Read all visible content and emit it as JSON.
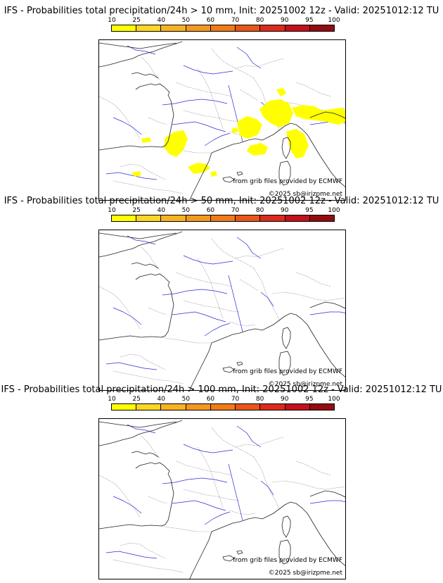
{
  "legend": {
    "labels": [
      "10",
      "25",
      "40",
      "50",
      "60",
      "70",
      "80",
      "90",
      "95",
      "100"
    ],
    "colors": [
      "#ffff00",
      "#fcd626",
      "#f8b323",
      "#f39820",
      "#f07b18",
      "#e9561a",
      "#dc2b1c",
      "#c3101a",
      "#940c12",
      "#5c0a0c"
    ]
  },
  "panels": [
    {
      "title": "IFS - Probabilities total precipitation/24h > 10 mm, Init: 20251002 12z - Valid: 20251012:12 TU",
      "credit_grib": "from grib files provided by ECMWF",
      "credit_copy": "©2025 sb@irizpme.net",
      "precip_color": "#ffff00",
      "has_precip": true
    },
    {
      "title": "IFS - Probabilities total precipitation/24h > 50 mm, Init: 20251002 12z - Valid: 20251012:12 TU",
      "credit_grib": "from grib files provided by ECMWF",
      "credit_copy": "©2025 sb@irizpme.net",
      "has_precip": false
    },
    {
      "title": "IFS - Probabilities total precipitation/24h > 100 mm, Init: 20251002 12z - Valid: 20251012:12 TU",
      "credit_grib": "from grib files provided by ECMWF",
      "credit_copy": "©2025 sb@irizpme.net",
      "has_precip": false
    }
  ],
  "map_colors": {
    "coast": "#222222",
    "borders": "#9a9a9a",
    "rivers": "#2d2dd6"
  }
}
